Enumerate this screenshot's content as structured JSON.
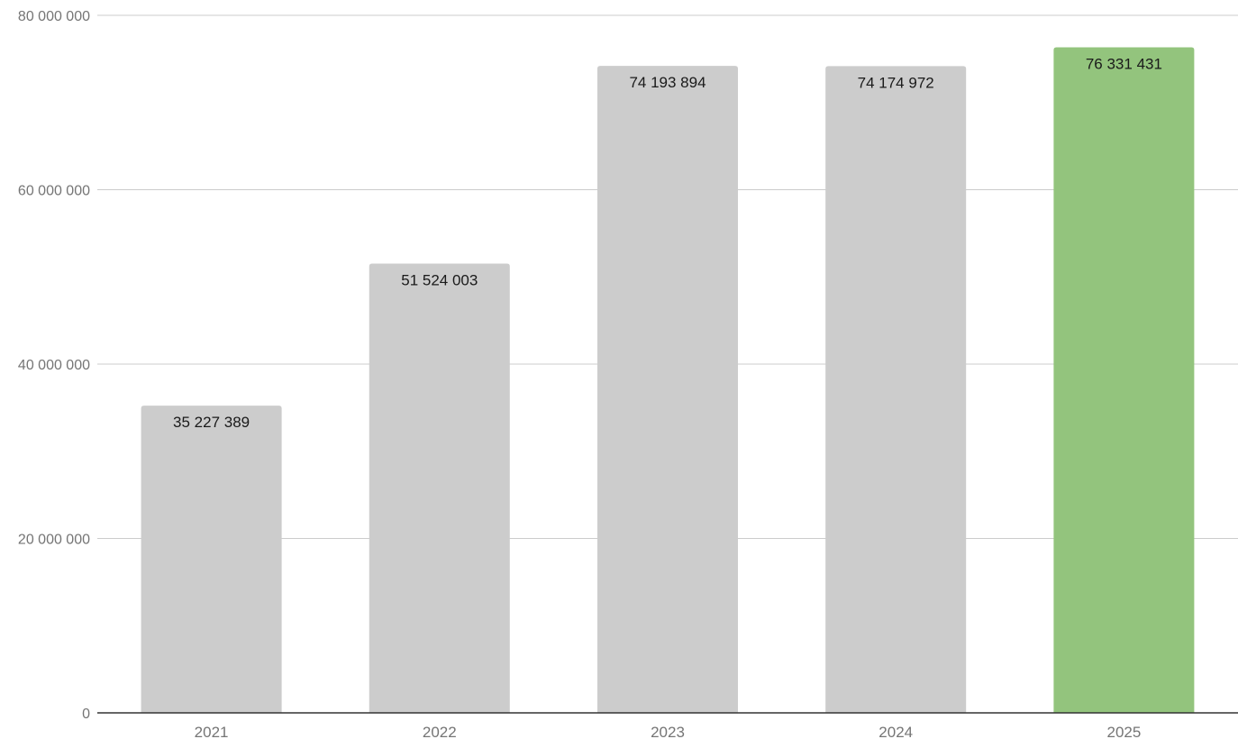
{
  "chart_data": {
    "type": "bar",
    "title": "",
    "xlabel": "",
    "ylabel": "",
    "categories": [
      "2021",
      "2022",
      "2023",
      "2024",
      "2025"
    ],
    "values": [
      35227389,
      51524003,
      74193894,
      74174972,
      76331431
    ],
    "data_labels": [
      "35 227 389",
      "51 524 003",
      "74 193 894",
      "74 174 972",
      "76 331 431"
    ],
    "bar_colors": [
      "#cccccc",
      "#cccccc",
      "#cccccc",
      "#cccccc",
      "#93c47d"
    ],
    "ylim": [
      0,
      80000000
    ],
    "y_ticks": [
      0,
      20000000,
      40000000,
      60000000,
      80000000
    ],
    "y_tick_labels": [
      "0",
      "20 000 000",
      "40 000 000",
      "60 000 000",
      "80 000 000"
    ],
    "grid": true,
    "legend": "none"
  }
}
